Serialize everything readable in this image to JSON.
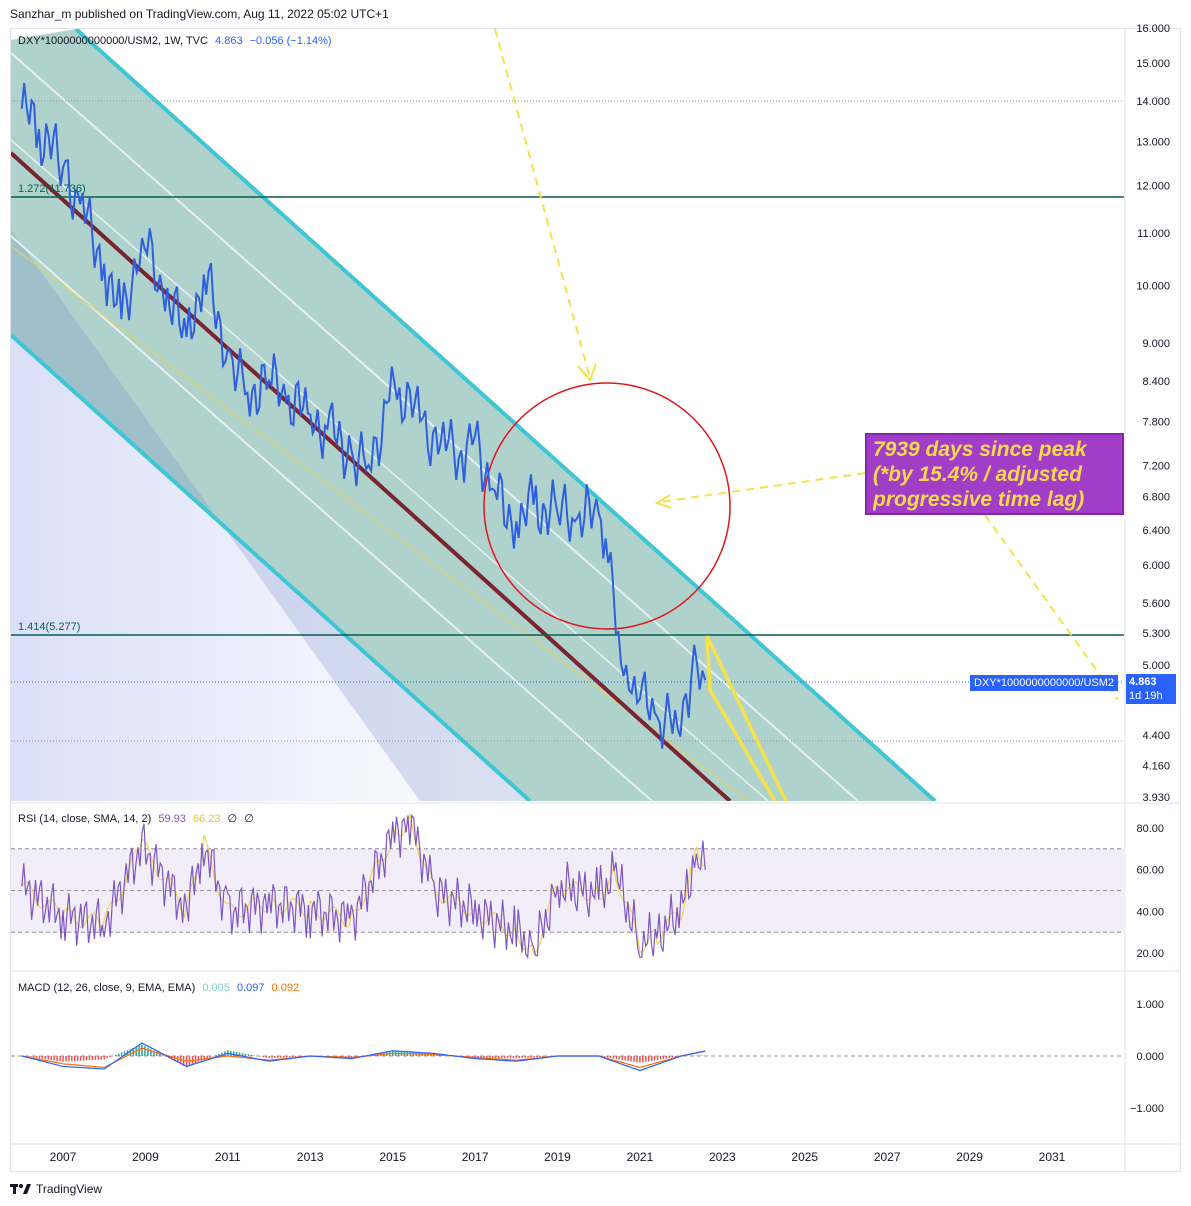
{
  "header": {
    "published": "Sanzhar_m published on TradingView.com, Aug 11, 2022 05:02 UTC+1"
  },
  "main_legend": {
    "symbol": "DXY*1000000000000/USM2, 1W, TVC",
    "last": "4.863",
    "change": "−0.056 (−1.14%)"
  },
  "price_axis": [
    "16.000",
    "15.000",
    "14.000",
    "13.000",
    "12.000",
    "11.000",
    "10.000",
    "9.000",
    "8.400",
    "7.800",
    "7.200",
    "6.800",
    "6.400",
    "6.000",
    "5.600",
    "5.300",
    "5.000",
    "4.400",
    "4.160",
    "3.930"
  ],
  "price_tag": {
    "symbol": "DXY*1000000000000/USM2",
    "value": "4.863",
    "countdown": "1d 19h"
  },
  "levels": [
    {
      "label": "1.272(11.736)",
      "value": 11.736,
      "color": "#0b5e50"
    },
    {
      "label": "1.414(5.277)",
      "value": 5.277,
      "color": "#0b5e50"
    }
  ],
  "annotation": {
    "line1": "7939 days since peak",
    "line2": "(*by 15.4% / adjusted",
    "line3": "progressive time lag)"
  },
  "rsi_legend": {
    "title": "RSI (14, close, SMA, 14, 2)",
    "rsi": "59.93",
    "sma": "66.23",
    "x1": "∅",
    "x2": "∅"
  },
  "rsi_axis": [
    "80.00",
    "60.00",
    "40.00",
    "20.00"
  ],
  "macd_legend": {
    "title": "MACD (12, 26, close, 9, EMA, EMA)",
    "hist": "0.005",
    "macd": "0.097",
    "signal": "0.092"
  },
  "macd_axis": [
    "1.000",
    "0.000",
    "−1.000"
  ],
  "time_axis": [
    "2007",
    "2009",
    "2011",
    "2013",
    "2015",
    "2017",
    "2019",
    "2021",
    "2023",
    "2025",
    "2027",
    "2029",
    "2031"
  ],
  "footer": {
    "brand": "TradingView"
  },
  "colors": {
    "price_line": "#2f5fe0",
    "channel": "#3ec6d4",
    "channel_fill": "#4e9c8f",
    "rsi": "#7e57c2",
    "rsi_sma": "#f2d64b",
    "macd": "#2962ff",
    "signal": "#ff6d00",
    "circle": "#e0151b",
    "arrow": "#f5e14a"
  },
  "chart_data": {
    "type": "line",
    "title": "DXY*1000000000000/USM2, 1W, TVC",
    "y_scale": "log",
    "ylim": [
      3.93,
      16.0
    ],
    "x": [
      "2006-01",
      "2006-06",
      "2007-01",
      "2007-06",
      "2008-01",
      "2008-06",
      "2008-12",
      "2009-06",
      "2010-01",
      "2010-06",
      "2011-01",
      "2011-06",
      "2012-01",
      "2012-06",
      "2013-01",
      "2013-06",
      "2014-01",
      "2014-06",
      "2014-12",
      "2015-03",
      "2015-09",
      "2016-03",
      "2016-09",
      "2017-01",
      "2017-06",
      "2018-01",
      "2018-06",
      "2019-01",
      "2019-06",
      "2020-01",
      "2020-03",
      "2020-06",
      "2020-09",
      "2021-01",
      "2021-06",
      "2021-12",
      "2022-04",
      "2022-08"
    ],
    "series": [
      {
        "name": "DXY*1000000000000/USM2",
        "values": [
          13.8,
          13.3,
          12.4,
          11.6,
          10.4,
          9.4,
          10.9,
          9.9,
          9.1,
          10.2,
          8.9,
          8.2,
          8.4,
          8.1,
          7.9,
          7.7,
          7.4,
          7.2,
          8.1,
          8.3,
          7.8,
          7.5,
          7.4,
          7.6,
          6.9,
          6.5,
          6.7,
          6.6,
          6.5,
          6.6,
          6.3,
          5.3,
          5.0,
          4.7,
          4.55,
          4.45,
          4.9,
          4.863
        ]
      }
    ],
    "rsi": {
      "x": [
        "2006",
        "2007",
        "2008",
        "2008-12",
        "2010",
        "2010-06",
        "2011",
        "2012",
        "2013",
        "2014",
        "2015",
        "2015-06",
        "2016",
        "2017",
        "2018",
        "2018-06",
        "2019",
        "2020",
        "2020-06",
        "2021",
        "2021-06",
        "2022",
        "2022-06",
        "2022-08"
      ],
      "values": [
        52,
        38,
        34,
        72,
        40,
        73,
        40,
        44,
        41,
        36,
        76,
        84,
        50,
        40,
        30,
        20,
        52,
        48,
        58,
        24,
        28,
        40,
        71,
        59.93
      ],
      "ylim": [
        15,
        85
      ],
      "bands": [
        70,
        50,
        30
      ]
    },
    "macd": {
      "x": [
        "2006",
        "2007",
        "2008",
        "2008-12",
        "2010",
        "2011",
        "2012",
        "2013",
        "2014",
        "2015",
        "2016",
        "2017",
        "2018",
        "2019",
        "2020",
        "2021",
        "2022",
        "2022-08"
      ],
      "macd": [
        0.0,
        -0.2,
        -0.25,
        0.25,
        -0.2,
        0.05,
        -0.1,
        0.0,
        -0.05,
        0.1,
        0.05,
        -0.05,
        -0.1,
        0.0,
        0.0,
        -0.28,
        0.0,
        0.097
      ],
      "signal": [
        0.0,
        -0.15,
        -0.22,
        0.15,
        -0.1,
        0.0,
        -0.08,
        0.0,
        -0.03,
        0.05,
        0.03,
        -0.03,
        -0.08,
        0.0,
        0.0,
        -0.22,
        0.0,
        0.092
      ],
      "ylim": [
        -1.4,
        1.5
      ]
    }
  }
}
